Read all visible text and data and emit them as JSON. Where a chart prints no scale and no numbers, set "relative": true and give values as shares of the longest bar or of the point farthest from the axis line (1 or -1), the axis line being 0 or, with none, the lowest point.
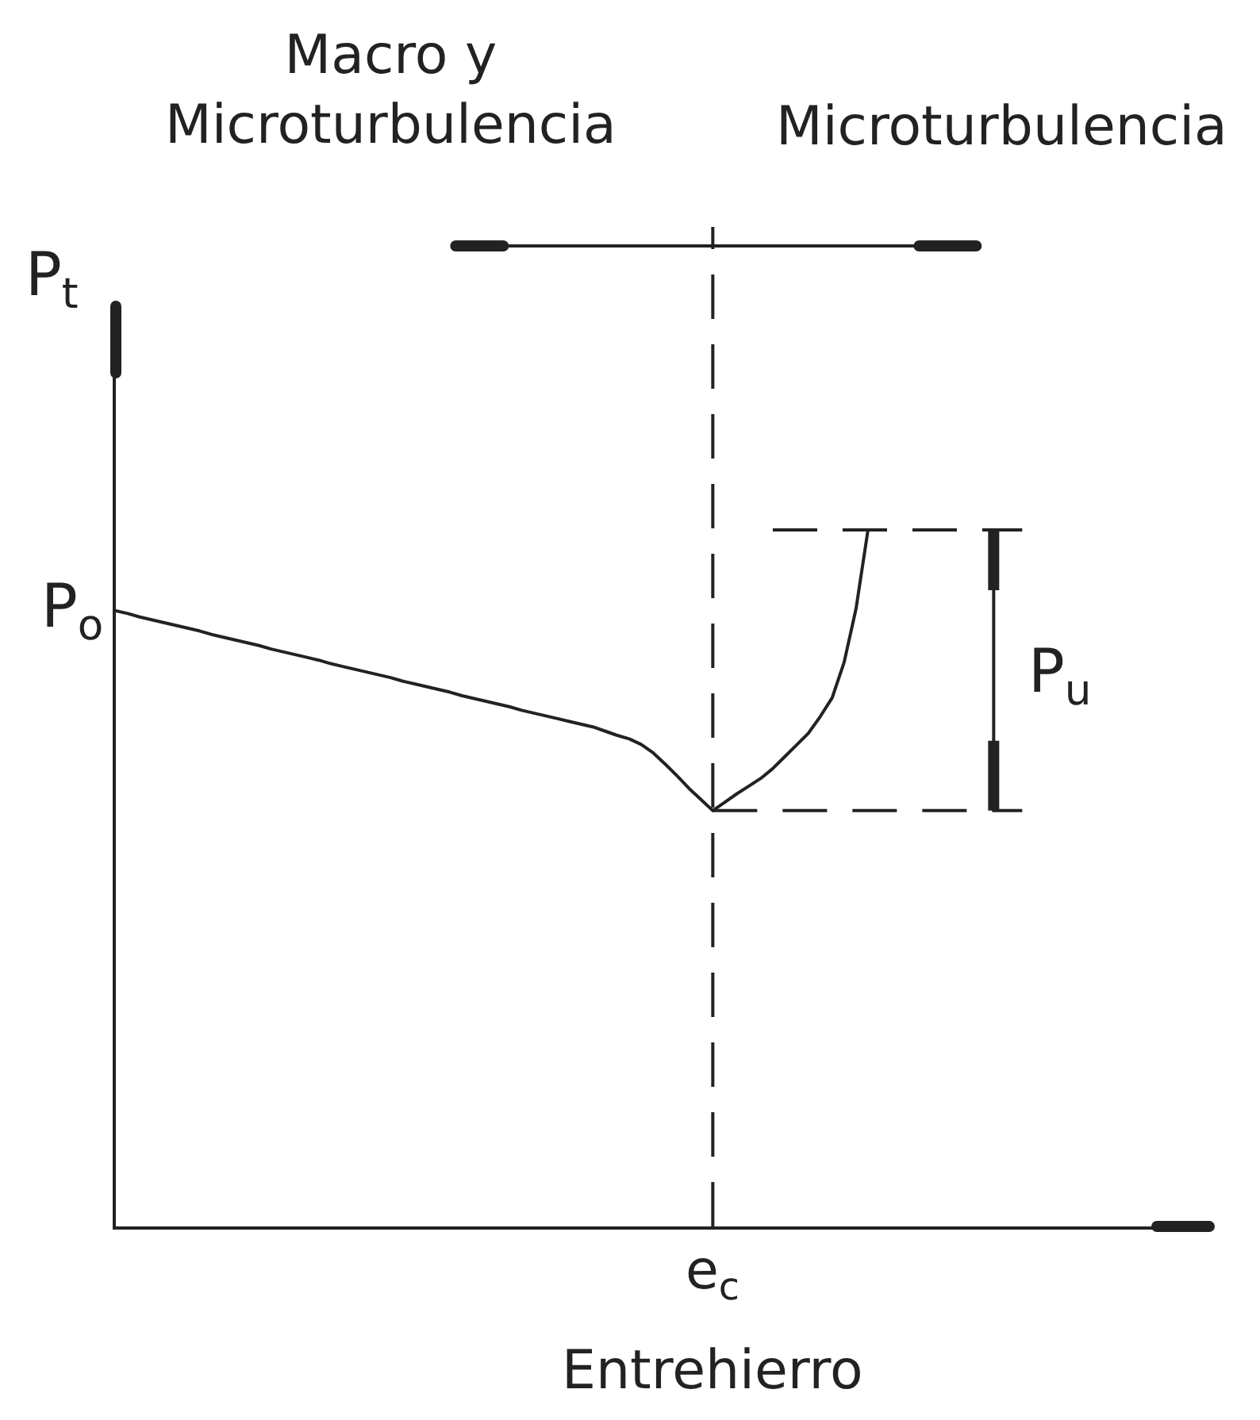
{
  "chart_data": {
    "type": "line",
    "relative": true,
    "xlabel": "Entrehierro",
    "ylabel": "P$_{t}$",
    "categories": [
      null,
      null,
      null,
      null,
      null,
      null,
      null,
      null,
      null,
      null,
      null,
      null,
      null,
      null,
      null,
      null,
      null,
      null,
      null,
      null,
      null,
      null,
      null,
      null,
      null,
      null,
      null,
      null,
      null,
      null,
      null,
      null,
      null,
      null,
      null,
      null,
      null,
      null,
      null,
      null,
      null,
      null,
      null,
      null,
      null,
      null,
      null,
      null,
      null,
      null,
      null,
      null,
      null,
      null,
      null,
      null,
      null,
      null,
      null,
      null,
      null,
      null,
      null,
      null
    ],
    "values": [
      0.884,
      0.88,
      0.875,
      0.871,
      0.867,
      0.863,
      0.859,
      0.855,
      0.85,
      0.846,
      0.842,
      0.838,
      0.834,
      0.829,
      0.825,
      0.821,
      0.817,
      0.813,
      0.808,
      0.804,
      0.8,
      0.796,
      0.792,
      0.788,
      0.783,
      0.779,
      0.775,
      0.771,
      0.767,
      0.762,
      0.758,
      0.754,
      0.75,
      0.746,
      0.741,
      0.737,
      0.733,
      0.729,
      0.725,
      0.721,
      0.717,
      0.711,
      0.705,
      0.7,
      0.692,
      0.68,
      0.664,
      0.647,
      0.629,
      0.613,
      0.597,
      0.609,
      0.621,
      0.632,
      0.643,
      0.657,
      0.674,
      0.691,
      0.708,
      0.732,
      0.759,
      0.81,
      0.887,
      1
    ],
    "color": "#222222",
    "marker": "none",
    "line_style": "solid",
    "ref_lines": [
      {
        "axis": "y",
        "value": 1,
        "line_style": "dashed",
        "color": "#222222"
      },
      {
        "axis": "y",
        "value": 0.597,
        "line_style": "dashed",
        "color": "#222222"
      }
    ],
    "annotations": [
      "Macro y\nMicroturbulencia",
      "Microturbulencia",
      "P$_{o}$",
      "P$_{u}$",
      "e$_{c}$"
    ]
  }
}
